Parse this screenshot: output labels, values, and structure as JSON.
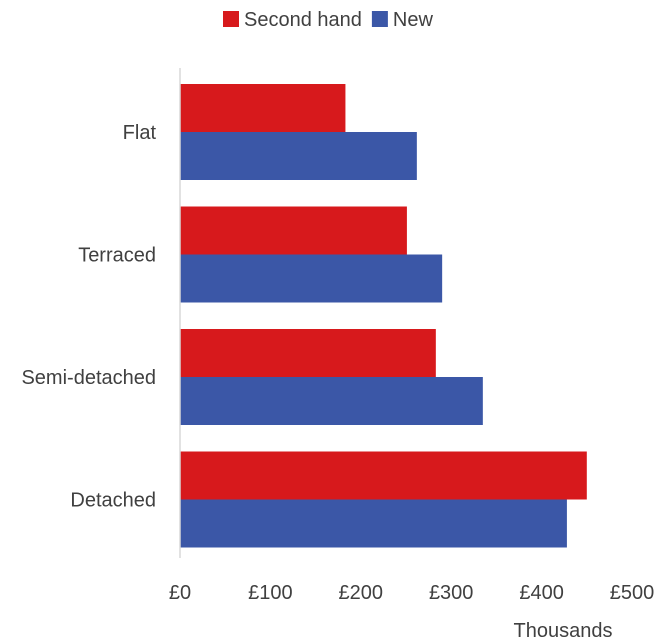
{
  "chart_data": {
    "type": "bar",
    "orientation": "horizontal",
    "title": "",
    "xlabel": "",
    "ylabel": "",
    "x_unit_label": "Thousands",
    "categories": [
      "Flat",
      "Terraced",
      "Semi-detached",
      "Detached"
    ],
    "series": [
      {
        "name": "Second hand",
        "color": "#d7191c",
        "values": [
          183,
          251,
          283,
          450
        ]
      },
      {
        "name": "New",
        "color": "#3b57a7",
        "values": [
          262,
          290,
          335,
          428
        ]
      }
    ],
    "xlim": [
      0,
      500
    ],
    "x_ticks": [
      0,
      100,
      200,
      300,
      400,
      500
    ],
    "x_tick_labels": [
      "£0",
      "£100",
      "£200",
      "£300",
      "£400",
      "£500"
    ],
    "grid": false,
    "legend_position": "top"
  }
}
